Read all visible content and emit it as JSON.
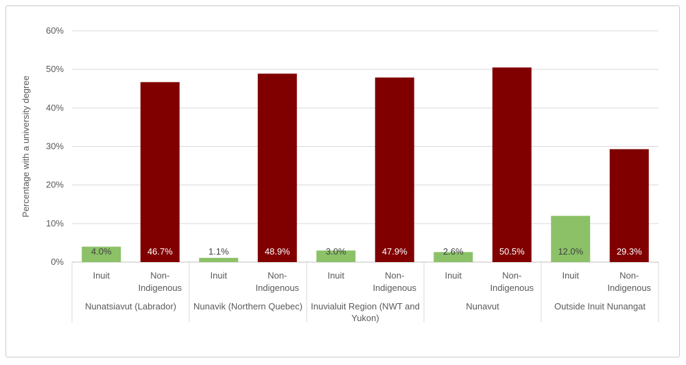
{
  "chart_data": {
    "type": "bar",
    "title": "",
    "ylabel": "Percentage with a university degree",
    "xlabel": "",
    "ylim": [
      0,
      60
    ],
    "yticks": [
      "0%",
      "10%",
      "20%",
      "30%",
      "40%",
      "50%",
      "60%"
    ],
    "grid": true,
    "groups": [
      {
        "name": "Nunatsiavut (Labrador)",
        "name_lines": [
          "Nunatsiavut (Labrador)"
        ]
      },
      {
        "name": "Nunavik (Northern Quebec)",
        "name_lines": [
          "Nunavik (Northern Quebec)"
        ]
      },
      {
        "name": "Inuvialuit Region (NWT and Yukon)",
        "name_lines": [
          "Inuvialuit Region (NWT and",
          "Yukon)"
        ]
      },
      {
        "name": "Nunavut",
        "name_lines": [
          "Nunavut"
        ]
      },
      {
        "name": "Outside Inuit Nunangat",
        "name_lines": [
          "Outside Inuit Nunangat"
        ]
      }
    ],
    "series": [
      {
        "name": "Inuit",
        "label_lines": [
          "Inuit"
        ],
        "color": "#8cc168",
        "label_color": "#404040",
        "values": [
          4.0,
          1.1,
          3.0,
          2.6,
          12.0
        ],
        "labels": [
          "4.0%",
          "1.1%",
          "3.0%",
          "2.6%",
          "12.0%"
        ]
      },
      {
        "name": "Non-Indigenous",
        "label_lines": [
          "Non-",
          "Indigenous"
        ],
        "color": "#800000",
        "label_color": "#ffffff",
        "values": [
          46.7,
          48.9,
          47.9,
          50.5,
          29.3
        ],
        "labels": [
          "46.7%",
          "48.9%",
          "47.9%",
          "50.5%",
          "29.3%"
        ]
      }
    ]
  }
}
